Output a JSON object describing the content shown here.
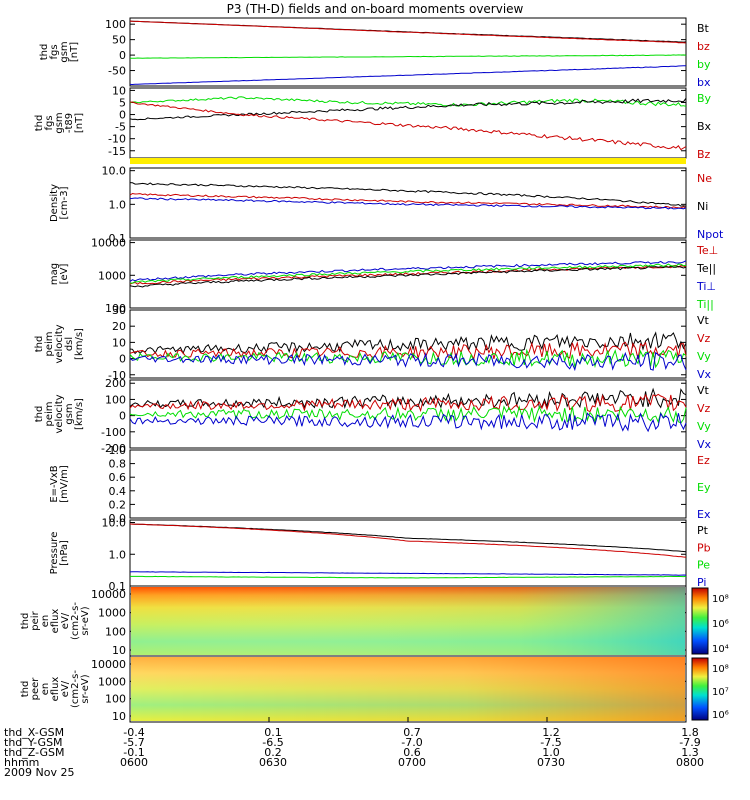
{
  "title": "P3 (TH-D) fields and on-board moments overview",
  "date": "2009 Nov 25",
  "colors": {
    "black": "#000000",
    "red": "#cc0000",
    "green": "#00dd00",
    "blue": "#0000cc",
    "yellow": "#ffee00"
  },
  "chart_data": [
    {
      "id": "p1",
      "type": "line",
      "ylabel": "thd\nfgs\ngsm\n[nT]",
      "ylim": [
        -100,
        120
      ],
      "yticks": [
        "100",
        "50",
        "0",
        "-50"
      ],
      "tickvals": [
        100,
        50,
        0,
        -50
      ],
      "series": [
        {
          "name": "Bt",
          "color": "black",
          "x": [
            0,
            0.5,
            1
          ],
          "y": [
            110,
            75,
            42
          ]
        },
        {
          "name": "bz",
          "color": "red",
          "x": [
            0,
            0.5,
            1
          ],
          "y": [
            110,
            74,
            40
          ]
        },
        {
          "name": "by",
          "color": "green",
          "x": [
            0,
            0.5,
            1
          ],
          "y": [
            -10,
            -5,
            0
          ]
        },
        {
          "name": "bx",
          "color": "blue",
          "x": [
            0,
            0.5,
            1
          ],
          "y": [
            -95,
            -65,
            -35
          ]
        }
      ]
    },
    {
      "id": "p2",
      "type": "line",
      "ylabel": "thd\nfgs\ngsm\n-t89\n[nT]",
      "ylim": [
        -18,
        11
      ],
      "yticks": [
        "10",
        "5",
        "0",
        "-5",
        "-10",
        "-15"
      ],
      "tickvals": [
        10,
        5,
        0,
        -5,
        -10,
        -15
      ],
      "series": [
        {
          "name": "By",
          "color": "green",
          "x": [
            0,
            0.2,
            0.4,
            0.6,
            0.8,
            1
          ],
          "y": [
            5,
            7,
            5,
            4,
            6,
            4
          ]
        },
        {
          "name": "Bx",
          "color": "black",
          "x": [
            0,
            0.2,
            0.4,
            0.6,
            0.8,
            1
          ],
          "y": [
            -2,
            0,
            2,
            4,
            5,
            6
          ]
        },
        {
          "name": "Bz",
          "color": "red",
          "x": [
            0,
            0.2,
            0.4,
            0.6,
            0.8,
            1
          ],
          "y": [
            5,
            0,
            -3,
            -6,
            -10,
            -14
          ]
        }
      ]
    },
    {
      "id": "p4",
      "type": "line",
      "scale": "log",
      "ylabel": "Density\n[cm-3]",
      "ylim": [
        0.1,
        12
      ],
      "yticks": [
        "10.0",
        "1.0",
        "0.1"
      ],
      "tickvals": [
        10,
        1,
        0.1
      ],
      "series": [
        {
          "name": "Ne",
          "color": "red",
          "x": [
            0,
            0.5,
            1
          ],
          "y": [
            2.0,
            1.2,
            0.8
          ]
        },
        {
          "name": "Ni",
          "color": "black",
          "x": [
            0,
            0.5,
            1
          ],
          "y": [
            4.2,
            2.5,
            0.9
          ]
        },
        {
          "name": "Npot",
          "color": "blue",
          "x": [
            0,
            0.5,
            1
          ],
          "y": [
            1.5,
            1.0,
            0.75
          ]
        }
      ]
    },
    {
      "id": "p5",
      "type": "line",
      "scale": "log",
      "ylabel": "mag\n[eV]",
      "ylim": [
        100,
        12000
      ],
      "yticks": [
        "10000",
        "1000",
        "100"
      ],
      "tickvals": [
        10000,
        1000,
        100
      ],
      "series": [
        {
          "name": "Te⊥",
          "color": "red",
          "x": [
            0,
            0.5,
            1
          ],
          "y": [
            550,
            1100,
            1900
          ]
        },
        {
          "name": "Te||",
          "color": "black",
          "x": [
            0,
            0.5,
            1
          ],
          "y": [
            450,
            1000,
            1800
          ]
        },
        {
          "name": "Ti⊥",
          "color": "blue",
          "x": [
            0,
            0.5,
            1
          ],
          "y": [
            700,
            1600,
            2600
          ]
        },
        {
          "name": "Ti||",
          "color": "green",
          "x": [
            0,
            0.5,
            1
          ],
          "y": [
            600,
            1300,
            2100
          ]
        }
      ]
    },
    {
      "id": "p6",
      "type": "line",
      "ylabel": "thd\npeim\nvelocity\ndsl\n[km/s]",
      "ylim": [
        -12,
        30
      ],
      "yticks": [
        "30",
        "20",
        "10",
        "0",
        "-10"
      ],
      "tickvals": [
        30,
        20,
        10,
        0,
        -10
      ],
      "series": [
        {
          "name": "Vt",
          "color": "black",
          "x": [
            0,
            1
          ],
          "y": [
            5,
            12
          ]
        },
        {
          "name": "Vz",
          "color": "red",
          "x": [
            0,
            1
          ],
          "y": [
            3,
            5
          ]
        },
        {
          "name": "Vy",
          "color": "green",
          "x": [
            0,
            1
          ],
          "y": [
            1,
            0
          ]
        },
        {
          "name": "Vx",
          "color": "blue",
          "x": [
            0,
            1
          ],
          "y": [
            0,
            -2
          ]
        }
      ]
    },
    {
      "id": "p7",
      "type": "line",
      "ylabel": "thd\npeim\nvelocity\ngsm\n[km/s]",
      "ylim": [
        -200,
        220
      ],
      "yticks": [
        "200",
        "100",
        "0",
        "-100",
        "-200"
      ],
      "tickvals": [
        200,
        100,
        0,
        -100,
        -200
      ],
      "series": [
        {
          "name": "Vt",
          "color": "black",
          "x": [
            0,
            1
          ],
          "y": [
            70,
            110
          ]
        },
        {
          "name": "Vz",
          "color": "red",
          "x": [
            0,
            1
          ],
          "y": [
            60,
            80
          ]
        },
        {
          "name": "Vy",
          "color": "green",
          "x": [
            0,
            1
          ],
          "y": [
            10,
            10
          ]
        },
        {
          "name": "Vx",
          "color": "blue",
          "x": [
            0,
            1
          ],
          "y": [
            -30,
            -40
          ]
        }
      ]
    },
    {
      "id": "p8",
      "type": "line",
      "ylabel": "E=-VxB\n[mV/m]",
      "ylim": [
        0,
        1
      ],
      "yticks": [
        "1.0",
        "0.8",
        "0.6",
        "0.4",
        "0.2",
        "0.0"
      ],
      "tickvals": [
        1,
        0.8,
        0.6,
        0.4,
        0.2,
        0
      ],
      "series": [
        {
          "name": "Ez",
          "color": "red",
          "x": [],
          "y": []
        },
        {
          "name": "Ey",
          "color": "green",
          "x": [],
          "y": []
        },
        {
          "name": "Ex",
          "color": "blue",
          "x": [],
          "y": []
        }
      ]
    },
    {
      "id": "p9",
      "type": "line",
      "scale": "log",
      "ylabel": "Pressure\n[nPa]",
      "ylim": [
        0.1,
        12
      ],
      "yticks": [
        "10.0",
        "1.0",
        "0.1"
      ],
      "tickvals": [
        10,
        1,
        0.1
      ],
      "series": [
        {
          "name": "Pt",
          "color": "black",
          "x": [
            0,
            0.5,
            1
          ],
          "y": [
            9,
            3.2,
            1.2
          ]
        },
        {
          "name": "Pb",
          "color": "red",
          "x": [
            0,
            0.5,
            1
          ],
          "y": [
            9,
            2.6,
            0.8
          ]
        },
        {
          "name": "Pe",
          "color": "green",
          "x": [
            0,
            0.5,
            1
          ],
          "y": [
            0.2,
            0.18,
            0.2
          ]
        },
        {
          "name": "Pi",
          "color": "blue",
          "x": [
            0,
            0.5,
            1
          ],
          "y": [
            0.28,
            0.25,
            0.22
          ]
        }
      ]
    },
    {
      "id": "p10",
      "type": "heatmap",
      "ylabel": "thd\npeir\nen\neflux\neV/\n(cm2-s-\nsr-eV)",
      "yticks": [
        "10000",
        "1000",
        "100",
        "10"
      ],
      "tickvals": [
        10000,
        1000,
        100,
        10
      ],
      "colorbar": {
        "ticks": [
          "10⁸",
          "10⁶",
          "10⁴"
        ]
      }
    },
    {
      "id": "p11",
      "type": "heatmap",
      "ylabel": "thd\npeer\nen\neflux\neV/\n(cm2-s-\nsr-eV)",
      "yticks": [
        "10000",
        "1000",
        "100",
        "10"
      ],
      "tickvals": [
        10000,
        1000,
        100,
        10
      ],
      "colorbar": {
        "ticks": [
          "10⁸",
          "10⁷",
          "10⁶"
        ]
      }
    }
  ],
  "footer": {
    "row_labels": [
      "thd_X-GSM",
      "thd_Y-GSM",
      "thd_Z-GSM",
      "hhmm"
    ],
    "columns": [
      [
        "-0.4",
        "-5.7",
        "-0.1",
        "0600"
      ],
      [
        "0.1",
        "-6.5",
        "0.2",
        "0630"
      ],
      [
        "0.7",
        "-7.0",
        "0.6",
        "0700"
      ],
      [
        "1.2",
        "-7.5",
        "1.0",
        "0730"
      ],
      [
        "1.8",
        "-7.9",
        "1.3",
        "0800"
      ]
    ]
  }
}
